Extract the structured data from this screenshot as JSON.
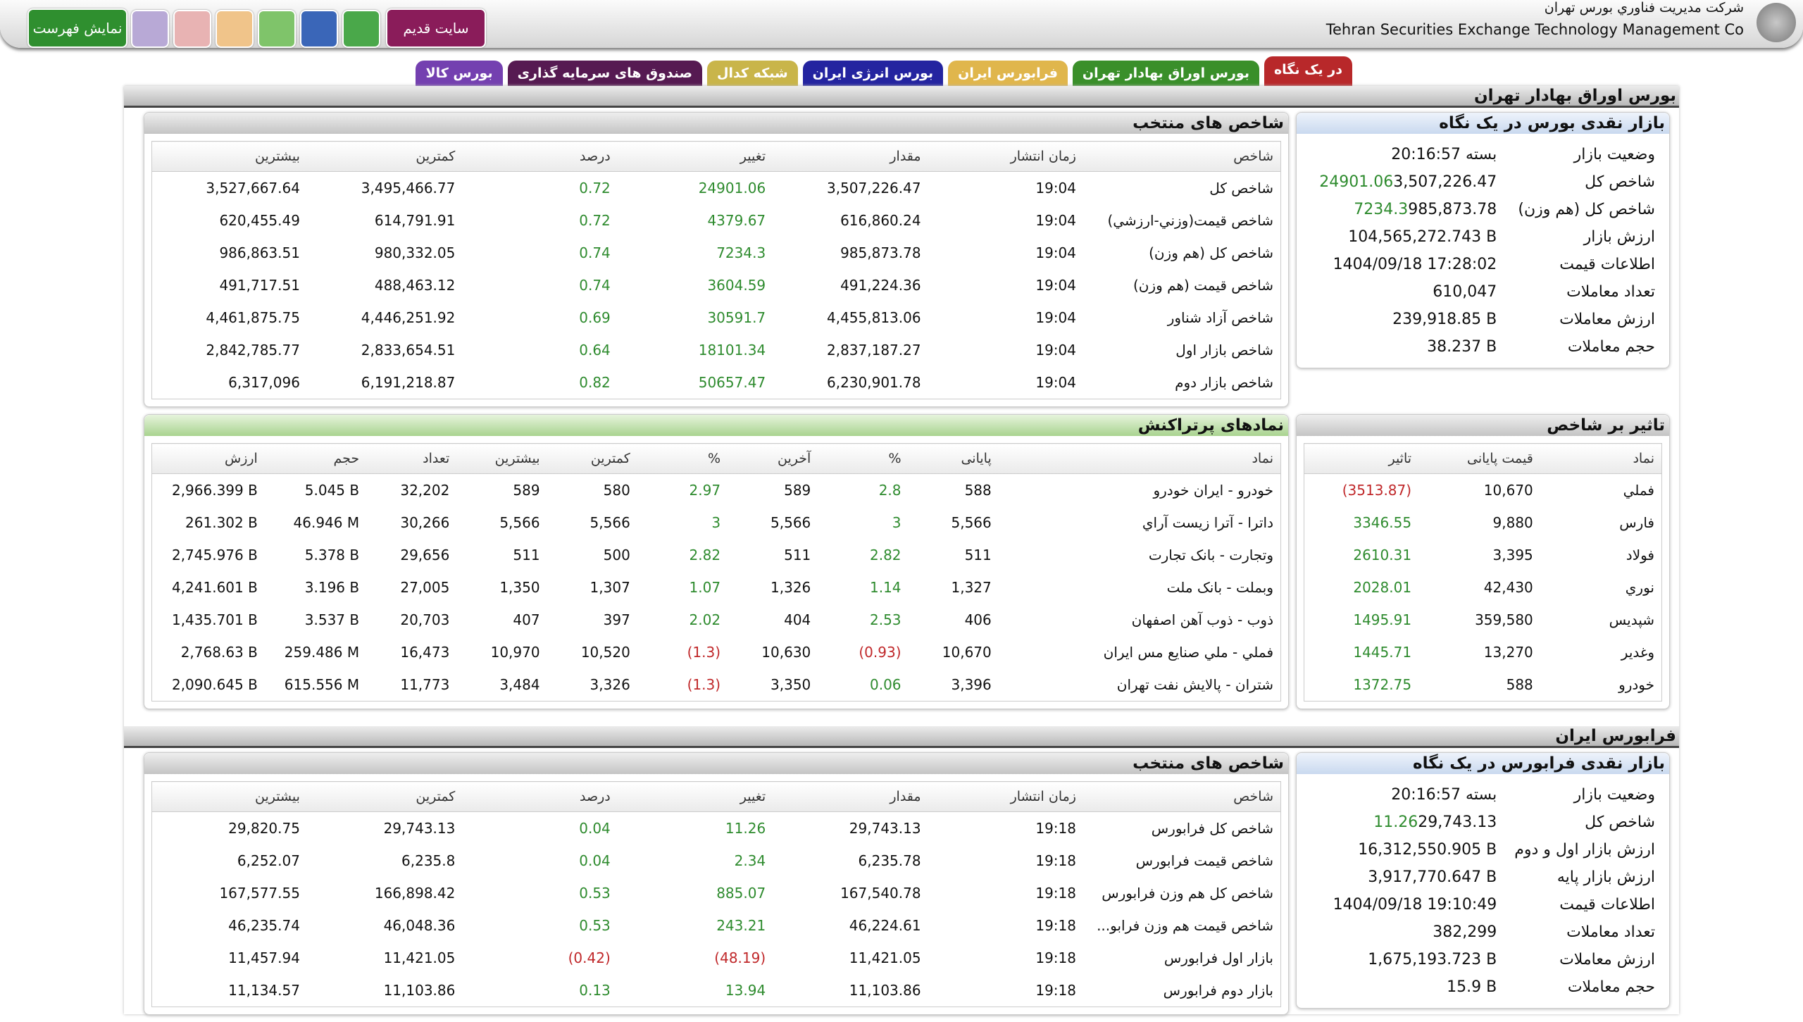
{
  "header": {
    "company_fa": "شرکت مديريت فناوري بورس تهران",
    "company_en": "Tehran Securities Exchange Technology Management Co",
    "menu_button": "نمایش فهرست",
    "old_site_button": "سایت قدیم"
  },
  "tabs": [
    "در یک نگاه",
    "بورس اوراق بهادار تهران",
    "فرابورس ایران",
    "بورس انرژی ایران",
    "شبکه کدال",
    "صندوق های سرمایه گذاری",
    "بورس کالا"
  ],
  "sections": [
    {
      "title": "بورس اوراق بهادار تهران",
      "summary": {
        "title": "بازار نقدی بورس در یک نگاه",
        "rows": [
          [
            "وضعیت بازار",
            "بسته 20:16:57"
          ],
          [
            "شاخص کل",
            "3,507,226.47",
            "24901.06"
          ],
          [
            "شاخص کل (هم وزن)",
            "985,873.78",
            "7234.3"
          ],
          [
            "ارزش بازار",
            "104,565,272.743 B"
          ],
          [
            "اطلاعات قیمت",
            "1404/09/18 17:28:02"
          ],
          [
            "تعداد معاملات",
            "610,047"
          ],
          [
            "ارزش معاملات",
            "239,918.85 B"
          ],
          [
            "حجم معاملات",
            "38.237 B"
          ]
        ]
      },
      "indices": {
        "title": "شاخص های منتخب",
        "headers": [
          "شاخص",
          "زمان انتشار",
          "مقدار",
          "تغییر",
          "درصد",
          "کمترین",
          "بیشترین"
        ],
        "rows": [
          [
            "شاخص کل",
            "19:04",
            "3,507,226.47",
            "24901.06",
            "0.72",
            "3,495,466.77",
            "3,527,667.64"
          ],
          [
            "شاخص قیمت(وزني-ارزشي)",
            "19:04",
            "616,860.24",
            "4379.67",
            "0.72",
            "614,791.91",
            "620,455.49"
          ],
          [
            "شاخص کل (هم وزن)",
            "19:04",
            "985,873.78",
            "7234.3",
            "0.74",
            "980,332.05",
            "986,863.51"
          ],
          [
            "شاخص قیمت (هم وزن)",
            "19:04",
            "491,224.36",
            "3604.59",
            "0.74",
            "488,463.12",
            "491,717.51"
          ],
          [
            "شاخص آزاد شناور",
            "19:04",
            "4,455,813.06",
            "30591.7",
            "0.69",
            "4,446,251.92",
            "4,461,875.75"
          ],
          [
            "شاخص بازار اول",
            "19:04",
            "2,837,187.27",
            "18101.34",
            "0.64",
            "2,833,654.51",
            "2,842,785.77"
          ],
          [
            "شاخص بازار دوم",
            "19:04",
            "6,230,901.78",
            "50657.47",
            "0.82",
            "6,191,218.87",
            "6,317,096"
          ]
        ]
      },
      "impact": {
        "title": "تاثیر بر شاخص",
        "headers": [
          "نماد",
          "قیمت پایانی",
          "تاثیر"
        ],
        "rows": [
          [
            "فملي",
            "10,670",
            "(3513.87)"
          ],
          [
            "فارس",
            "9,880",
            "3346.55"
          ],
          [
            "فولاد",
            "3,395",
            "2610.31"
          ],
          [
            "نوري",
            "42,430",
            "2028.01"
          ],
          [
            "شپديس",
            "359,580",
            "1495.91"
          ],
          [
            "وغدير",
            "13,270",
            "1445.71"
          ],
          [
            "خودرو",
            "588",
            "1372.75"
          ]
        ]
      },
      "active": {
        "title": "نمادهای پرتراکنش",
        "headers": [
          "نماد",
          "پایانی",
          "%",
          "آخرین",
          "%",
          "کمترین",
          "بیشترین",
          "تعداد",
          "حجم",
          "ارزش"
        ],
        "rows": [
          [
            "خودرو - ایران خودرو",
            "588",
            "2.8",
            "589",
            "2.97",
            "580",
            "589",
            "32,202",
            "5.045 B",
            "2,966.399 B"
          ],
          [
            "داترا - آترا زیست آراي",
            "5,566",
            "3",
            "5,566",
            "3",
            "5,566",
            "5,566",
            "30,266",
            "46.946 M",
            "261.302 B"
          ],
          [
            "وتجارت - بانک تجارت",
            "511",
            "2.82",
            "511",
            "2.82",
            "500",
            "511",
            "29,656",
            "5.378 B",
            "2,745.976 B"
          ],
          [
            "وبملت - بانک ملت",
            "1,327",
            "1.14",
            "1,326",
            "1.07",
            "1,307",
            "1,350",
            "27,005",
            "3.196 B",
            "4,241.601 B"
          ],
          [
            "ذوب - ذوب آهن اصفهان",
            "406",
            "2.53",
            "404",
            "2.02",
            "397",
            "407",
            "20,703",
            "3.537 B",
            "1,435.701 B"
          ],
          [
            "فملي - ملي صنايع مس ايران",
            "10,670",
            "(0.93)",
            "10,630",
            "(1.3)",
            "10,520",
            "10,970",
            "16,473",
            "259.486 M",
            "2,768.63 B"
          ],
          [
            "شتران - پالايش نفت تهران",
            "3,396",
            "0.06",
            "3,350",
            "(1.3)",
            "3,326",
            "3,484",
            "11,773",
            "615.556 M",
            "2,090.645 B"
          ]
        ]
      }
    },
    {
      "title": "فرابورس ایران",
      "summary": {
        "title": "بازار نقدی فرابورس در یک نگاه",
        "rows": [
          [
            "وضعیت بازار",
            "بسته 20:16:57"
          ],
          [
            "شاخص کل",
            "29,743.13",
            "11.26"
          ],
          [
            "ارزش بازار اول و دوم",
            "16,312,550.905 B"
          ],
          [
            "ارزش بازار پایه",
            "3,917,770.647 B"
          ],
          [
            "اطلاعات قیمت",
            "1404/09/18 19:10:49"
          ],
          [
            "تعداد معاملات",
            "382,299"
          ],
          [
            "ارزش معاملات",
            "1,675,193.723 B"
          ],
          [
            "حجم معاملات",
            "15.9 B"
          ]
        ]
      },
      "indices": {
        "title": "شاخص های منتخب",
        "headers": [
          "شاخص",
          "زمان انتشار",
          "مقدار",
          "تغییر",
          "درصد",
          "کمترین",
          "بیشترین"
        ],
        "rows": [
          [
            "شاخص کل فرابورس",
            "19:18",
            "29,743.13",
            "11.26",
            "0.04",
            "29,743.13",
            "29,820.75"
          ],
          [
            "شاخص قیمت فرابورس",
            "19:18",
            "6,235.78",
            "2.34",
            "0.04",
            "6,235.8",
            "6,252.07"
          ],
          [
            "شاخص کل هم وزن فرابورس",
            "19:18",
            "167,540.78",
            "885.07",
            "0.53",
            "166,898.42",
            "167,577.55"
          ],
          [
            "شاخص قیمت هم وزن فرابو...",
            "19:18",
            "46,224.61",
            "243.21",
            "0.53",
            "46,048.36",
            "46,235.74"
          ],
          [
            "بازار اول فرابورس",
            "19:18",
            "11,421.05",
            "(48.19)",
            "(0.42)",
            "11,421.05",
            "11,457.94"
          ],
          [
            "بازار دوم فرابورس",
            "19:18",
            "11,103.86",
            "13.94",
            "0.13",
            "11,103.86",
            "11,134.57"
          ]
        ]
      }
    }
  ]
}
